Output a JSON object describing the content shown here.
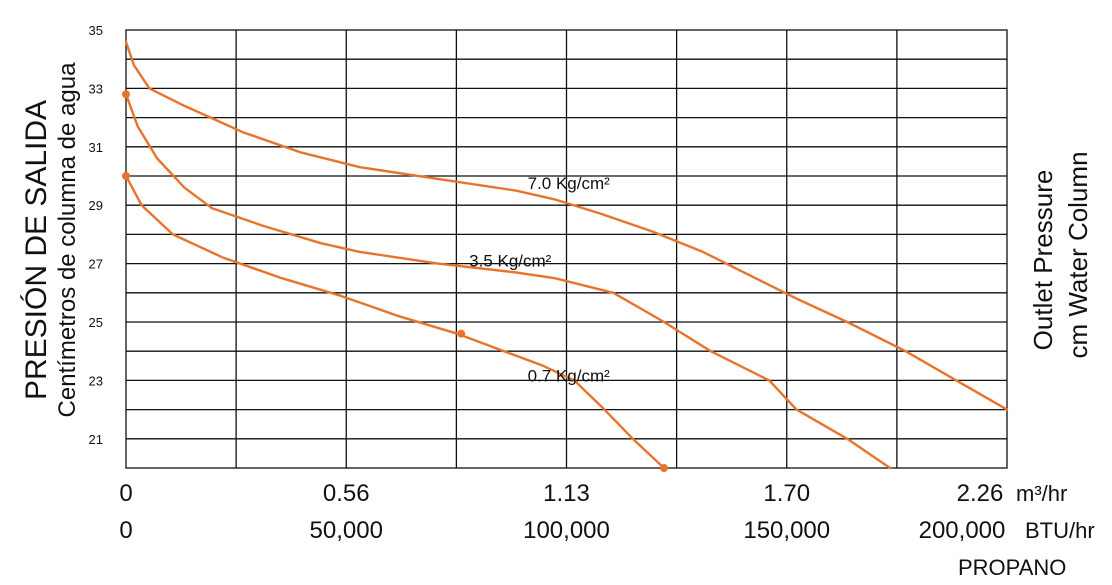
{
  "chart_data": {
    "type": "line",
    "title": "",
    "ylabel_left": [
      "PRESIÓN DE SALIDA",
      "Centímetros de columna de agua"
    ],
    "ylabel_right": [
      "Outlet Pressure",
      "cm Water Column"
    ],
    "y_ticks": [
      "35",
      "33",
      "31",
      "29",
      "27",
      "25",
      "23",
      "21"
    ],
    "ylim": [
      20,
      35
    ],
    "x_axis_primary": {
      "ticks": [
        "0",
        "0.56",
        "1.13",
        "1.70",
        "2.26"
      ],
      "unit": "m³/hr",
      "range": [
        0,
        2.26
      ]
    },
    "x_axis_secondary": {
      "ticks": [
        "0",
        "50,000",
        "100,000",
        "150,000",
        "200,000"
      ],
      "unit": "BTU/hr",
      "note": "PROPANO"
    },
    "grid": true,
    "line_color": "#e8742c",
    "series": [
      {
        "name": "7.0 Kg/cm²",
        "points": [
          [
            0,
            34.6
          ],
          [
            0.02,
            33.8
          ],
          [
            0.06,
            33.0
          ],
          [
            0.15,
            32.4
          ],
          [
            0.3,
            31.5
          ],
          [
            0.45,
            30.8
          ],
          [
            0.6,
            30.3
          ],
          [
            0.8,
            29.9
          ],
          [
            1.0,
            29.5
          ],
          [
            1.1,
            29.2
          ],
          [
            1.22,
            28.7
          ],
          [
            1.35,
            28.1
          ],
          [
            1.48,
            27.4
          ],
          [
            1.6,
            26.6
          ],
          [
            1.72,
            25.8
          ],
          [
            1.85,
            25.0
          ],
          [
            2.0,
            24.0
          ],
          [
            2.13,
            23.0
          ],
          [
            2.26,
            22.0
          ]
        ]
      },
      {
        "name": "3.5 Kg/cm²",
        "points": [
          [
            0,
            30.0
          ],
          [
            0.04,
            29.0
          ],
          [
            0.12,
            28.0
          ],
          [
            0.25,
            27.2
          ],
          [
            0.4,
            26.5
          ],
          [
            0.55,
            25.9
          ],
          [
            0.7,
            25.2
          ],
          [
            0.85,
            24.6
          ],
          [
            0.97,
            24.0
          ],
          [
            1.07,
            23.5
          ],
          [
            1.15,
            23.0
          ],
          [
            1.22,
            22.1
          ],
          [
            1.3,
            21.0
          ],
          [
            1.38,
            20.0
          ]
        ]
      },
      {
        "name": "0.7 Kg/cm²",
        "points": [
          [
            0,
            32.8
          ],
          [
            0.03,
            31.7
          ],
          [
            0.08,
            30.6
          ],
          [
            0.15,
            29.6
          ],
          [
            0.22,
            28.9
          ],
          [
            0.35,
            28.3
          ],
          [
            0.5,
            27.7
          ],
          [
            0.6,
            27.4
          ],
          [
            0.8,
            27.0
          ],
          [
            1.0,
            26.7
          ],
          [
            1.1,
            26.5
          ],
          [
            1.25,
            26.0
          ],
          [
            1.38,
            25.0
          ],
          [
            1.5,
            24.0
          ],
          [
            1.65,
            23.0
          ],
          [
            1.72,
            22.0
          ],
          [
            1.85,
            21.0
          ],
          [
            1.96,
            20.0
          ]
        ]
      }
    ],
    "markers": [
      [
        0,
        32.8
      ],
      [
        0,
        30.0
      ],
      [
        0.86,
        24.6
      ],
      [
        1.38,
        20.0
      ]
    ]
  }
}
